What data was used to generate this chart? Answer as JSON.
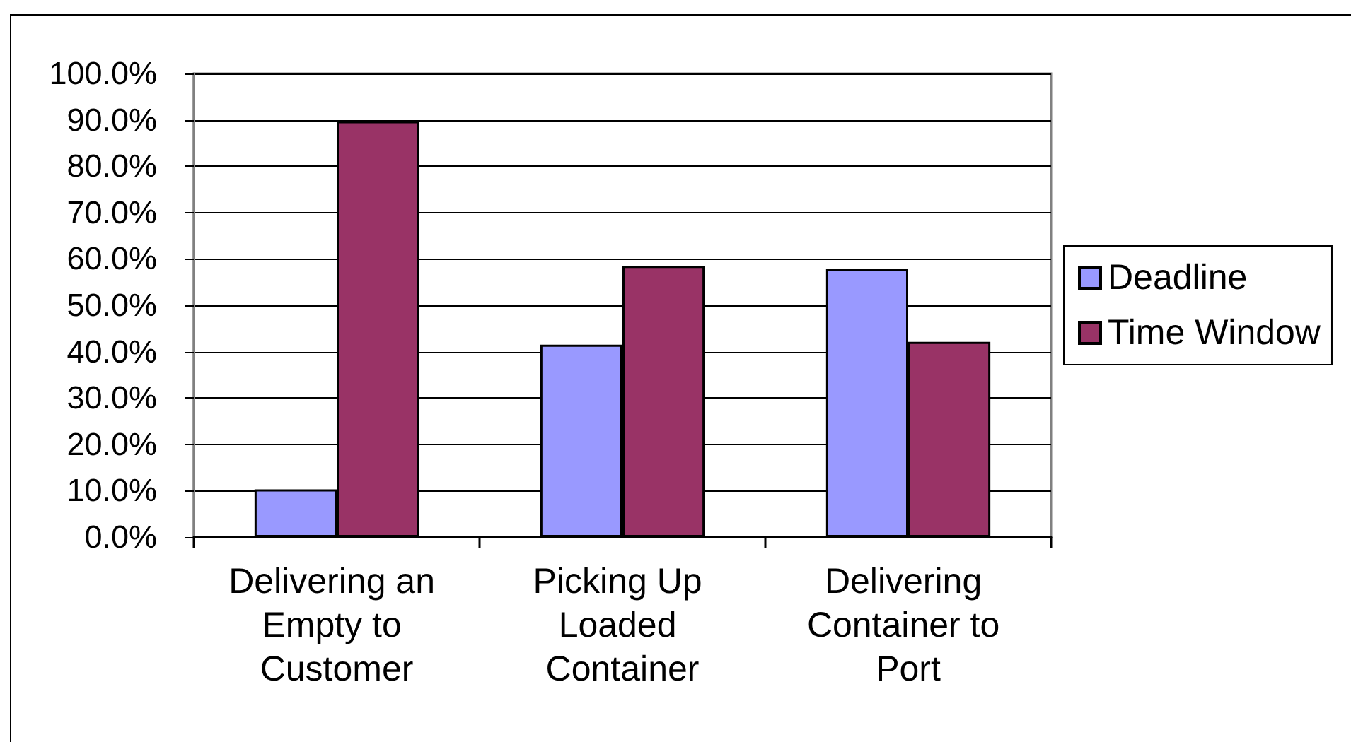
{
  "chart_data": {
    "type": "bar",
    "categories": [
      "Delivering an Empty to Customer",
      "Picking Up Loaded Container",
      "Delivering Container to Port"
    ],
    "series": [
      {
        "name": "Deadline",
        "color": "#9999ff",
        "values": [
          10.3,
          41.5,
          57.9
        ]
      },
      {
        "name": "Time Window",
        "color": "#993366",
        "values": [
          89.7,
          58.5,
          42.1
        ]
      }
    ],
    "ylim": [
      0,
      100
    ],
    "yticks": [
      {
        "value": 0,
        "label": "0.0%"
      },
      {
        "value": 10,
        "label": "10.0%"
      },
      {
        "value": 20,
        "label": "20.0%"
      },
      {
        "value": 30,
        "label": "30.0%"
      },
      {
        "value": 40,
        "label": "40.0%"
      },
      {
        "value": 50,
        "label": "50.0%"
      },
      {
        "value": 60,
        "label": "60.0%"
      },
      {
        "value": 70,
        "label": "70.0%"
      },
      {
        "value": 80,
        "label": "80.0%"
      },
      {
        "value": 90,
        "label": "90.0%"
      },
      {
        "value": 100,
        "label": "100.0%"
      }
    ],
    "grid": "y",
    "legend": "right"
  }
}
